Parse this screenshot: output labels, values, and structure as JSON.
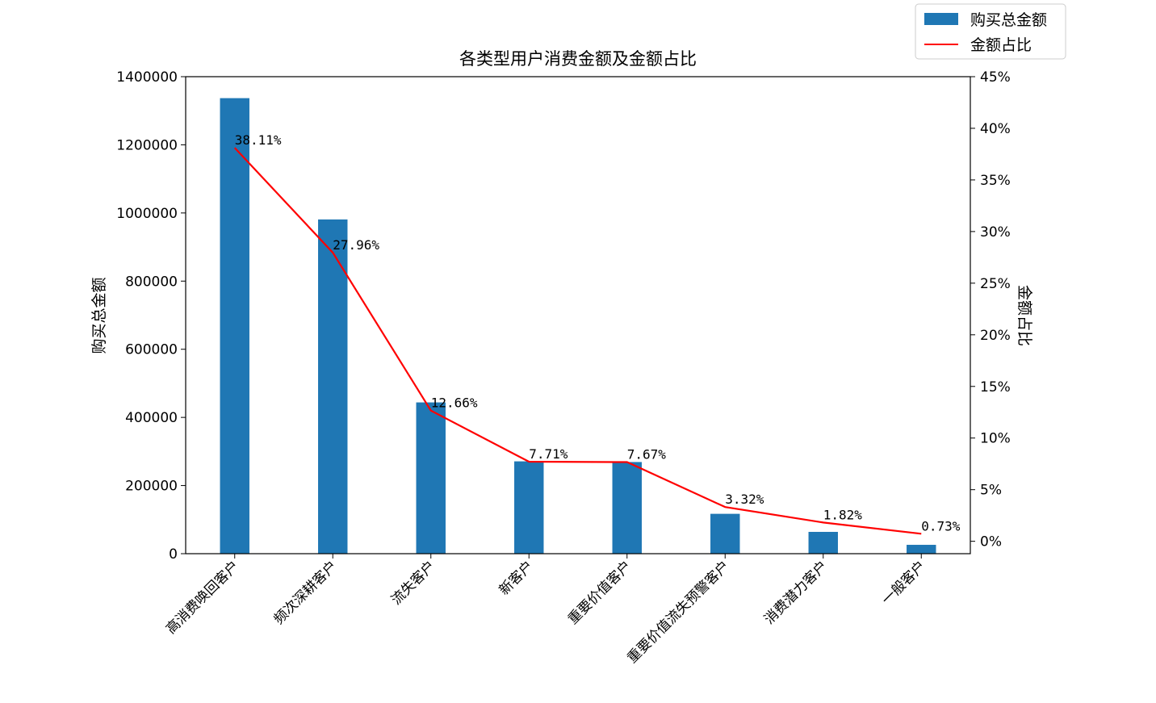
{
  "chart_data": {
    "type": "bar",
    "title": "各类型用户消费金额及金额占比",
    "categories": [
      "高消费唤回客户",
      "频次深耕客户",
      "流失客户",
      "新客户",
      "重要价值客户",
      "重要价值流失预警客户",
      "消费潜力客户",
      "一般客户"
    ],
    "series": [
      {
        "name": "购买总金额",
        "type": "bar",
        "axis": "left",
        "color": "#1f77b4",
        "values": [
          1337000,
          981000,
          444000,
          271000,
          269000,
          117000,
          64000,
          26000
        ]
      },
      {
        "name": "金额占比",
        "type": "line",
        "axis": "right",
        "color": "#ff0000",
        "values": [
          38.11,
          27.96,
          12.66,
          7.71,
          7.67,
          3.32,
          1.82,
          0.73
        ],
        "labels": [
          "38.11%",
          "27.96%",
          "12.66%",
          "7.71%",
          "7.67%",
          "3.32%",
          "1.82%",
          "0.73%"
        ]
      }
    ],
    "ylabel": "购买总金额",
    "ylim": [
      0,
      1400000
    ],
    "yticks": [
      "0",
      "200000",
      "400000",
      "600000",
      "800000",
      "1000000",
      "1200000",
      "1400000"
    ],
    "y2label": "金额占比",
    "y2lim": [
      -1.2,
      45
    ],
    "y2ticks": [
      "0%",
      "5%",
      "10%",
      "15%",
      "20%",
      "25%",
      "30%",
      "35%",
      "40%",
      "45%"
    ],
    "legend": {
      "position": "top-right",
      "entries": [
        "购买总金额",
        "金额占比"
      ]
    },
    "grid": false
  }
}
